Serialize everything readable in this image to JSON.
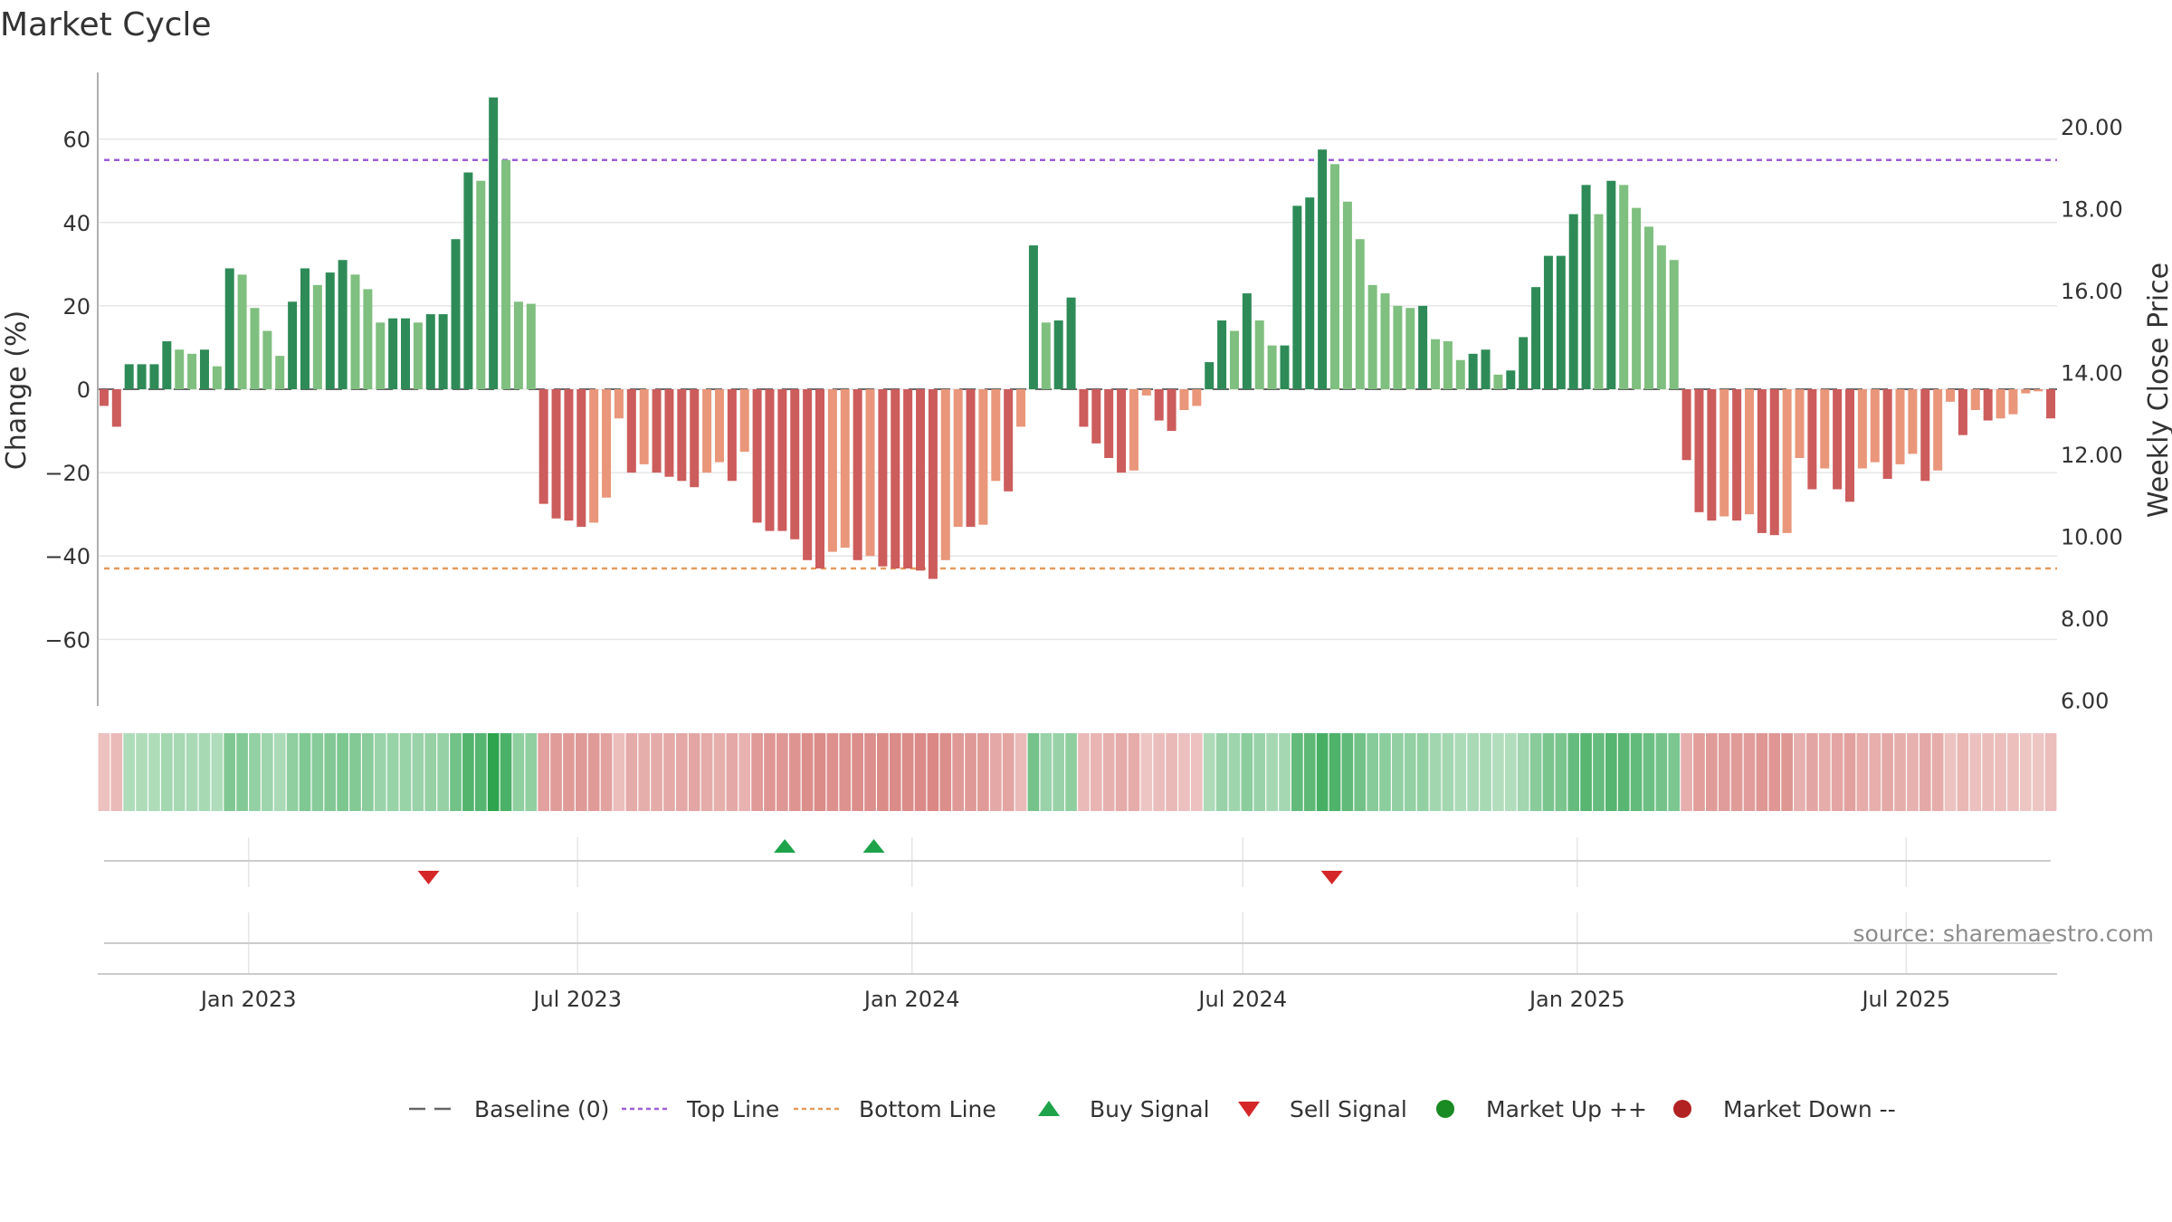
{
  "chart_data": {
    "type": "bar",
    "title": "Market Cycle",
    "ylabel": "Change (%)",
    "y2label": "Weekly Close Price",
    "ylim": [
      -76,
      76
    ],
    "y2lim": [
      6,
      21.2
    ],
    "yticks": [
      60,
      40,
      20,
      0,
      -20,
      -40,
      -60
    ],
    "ytick_labels": [
      "60",
      "40",
      "20",
      "0",
      "−20",
      "−40",
      "−60"
    ],
    "y2ticks": [
      20,
      18,
      16,
      14,
      12,
      10,
      8,
      6
    ],
    "y2tick_labels": [
      "20.00",
      "18.00",
      "16.00",
      "14.00",
      "12.00",
      "10.00",
      "8.00",
      "6.00"
    ],
    "x_start": "2022-10-10",
    "x_end": "2025-09-22",
    "xticks": [
      "2023-01-01",
      "2023-07-01",
      "2024-01-01",
      "2024-07-01",
      "2025-01-01",
      "2025-07-01"
    ],
    "xtick_labels": [
      "Jan 2023",
      "Jul 2023",
      "Jan 2024",
      "Jul 2024",
      "Jan 2025",
      "Jul 2025"
    ],
    "top_line": 55,
    "bottom_line": -43,
    "grid": true,
    "values": [
      -4,
      -9,
      6,
      6,
      6,
      11.5,
      9.5,
      8.5,
      9.5,
      5.5,
      29,
      27.5,
      19.5,
      14,
      8,
      21,
      29,
      25,
      28,
      31,
      27.5,
      24,
      16,
      17,
      17,
      16,
      18,
      18,
      36,
      52,
      50,
      70,
      55,
      21,
      20.5,
      -27.5,
      -31,
      -31.5,
      -33,
      -32,
      -26,
      -7,
      -20,
      -18,
      -20,
      -21,
      -22,
      -23.5,
      -20,
      -17.5,
      -22,
      -15,
      -32,
      -34,
      -34,
      -36,
      -41,
      -43,
      -39,
      -38,
      -41,
      -40,
      -42.5,
      -43,
      -43,
      -43.5,
      -45.5,
      -41,
      -33,
      -33,
      -32.5,
      -22,
      -24.5,
      -9,
      34.5,
      16,
      16.5,
      22,
      -9,
      -13,
      -16.5,
      -20,
      -19.5,
      -1.5,
      -7.5,
      -10,
      -5,
      -4,
      6.5,
      16.5,
      14,
      23,
      16.5,
      10.5,
      10.5,
      44,
      46,
      57.5,
      54,
      45,
      36,
      25,
      23,
      20,
      19.5,
      20,
      12,
      11.5,
      7,
      8.5,
      9.5,
      3.5,
      4.5,
      12.5,
      24.5,
      32,
      32,
      42,
      49,
      42,
      50,
      49,
      43.5,
      39,
      34.5,
      31,
      -17,
      -29.5,
      -31.5,
      -30.5,
      -31.5,
      -30,
      -34.5,
      -35,
      -34.5,
      -16.5,
      -24,
      -19,
      -24,
      -27,
      -19,
      -17.5,
      -21.5,
      -18,
      -15.5,
      -22,
      -19.5,
      -3,
      -11,
      -5,
      -7.5,
      -7,
      -6,
      -1,
      -0.5,
      -7
    ],
    "buy_signals": [
      "2023-10-23",
      "2023-12-11"
    ],
    "sell_signals": [
      "2023-04-10",
      "2024-08-19"
    ],
    "legend": [
      {
        "label": "Baseline (0)",
        "color": "#666666",
        "marker": "dashed-line"
      },
      {
        "label": "Top Line",
        "color": "#9e5dd6",
        "marker": "dotted-line"
      },
      {
        "label": "Bottom Line",
        "color": "#e59a5b",
        "marker": "dotted-line"
      },
      {
        "label": "Buy Signal",
        "color": "#1ea34a",
        "marker": "triangle-up"
      },
      {
        "label": "Sell Signal",
        "color": "#d62728",
        "marker": "triangle-down"
      },
      {
        "label": "Market Up ++",
        "color": "#1a8a22",
        "marker": "circle"
      },
      {
        "label": "Market Down --",
        "color": "#b22222",
        "marker": "circle"
      }
    ],
    "legend_position": "bottom-center",
    "colors": {
      "up_strong": "#2e8b57",
      "up_weak": "#7fbf7f",
      "down_strong": "#cd5c5c",
      "down_weak": "#e9967a",
      "top_line": "#9e5dd6",
      "bottom_line": "#e59a5b",
      "buy": "#1ea34a",
      "sell": "#d62728"
    }
  },
  "source": "source: sharemaestro.com"
}
